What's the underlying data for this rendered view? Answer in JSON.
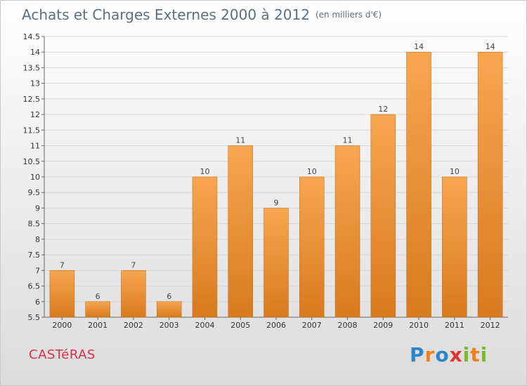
{
  "header": {
    "title": "Achats et Charges Externes 2000 à 2012",
    "unit": "(en milliers d'€)"
  },
  "footer": {
    "town": "CASTéRAS",
    "logo": [
      "P",
      "r",
      "o",
      "x",
      "i",
      "t",
      "i"
    ]
  },
  "colors": {
    "bar_light": "#f7a650",
    "bar_dark": "#d87a1e",
    "title": "#5b7080",
    "town": "#d9304a"
  },
  "chart_data": {
    "type": "bar",
    "categories": [
      "2000",
      "2001",
      "2002",
      "2003",
      "2004",
      "2005",
      "2006",
      "2007",
      "2008",
      "2009",
      "2010",
      "2011",
      "2012"
    ],
    "values": [
      7,
      6,
      7,
      6,
      10,
      11,
      9,
      10,
      11,
      12,
      14,
      10,
      14
    ],
    "data_labels": [
      "7",
      "6",
      "7",
      "6",
      "10",
      "11",
      "9",
      "10",
      "11",
      "12",
      "14",
      "10",
      "14"
    ],
    "ylim": [
      5.5,
      14.5
    ],
    "yticks": [
      "5.5",
      "6",
      "6.5",
      "7",
      "7.5",
      "8",
      "8.5",
      "9",
      "9.5",
      "10",
      "10.5",
      "11",
      "11.5",
      "12",
      "12.5",
      "13",
      "13.5",
      "14",
      "14.5"
    ],
    "grid": true,
    "legend": "none"
  }
}
